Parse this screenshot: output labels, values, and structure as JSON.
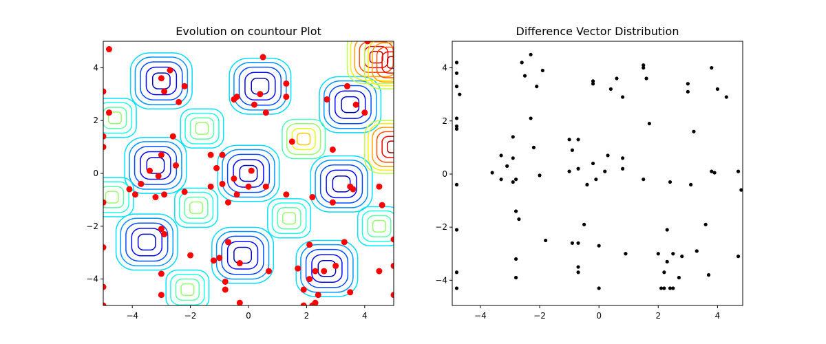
{
  "chart_data": [
    {
      "type": "contour",
      "title": "Evolution on countour Plot",
      "xlabel": "",
      "ylabel": "",
      "xlim": [
        -5,
        5
      ],
      "ylim": [
        -5,
        5
      ],
      "xticks": [
        -4,
        -2,
        0,
        2,
        4
      ],
      "yticks": [
        -4,
        -2,
        0,
        2,
        4
      ],
      "grid": false,
      "colormap": "jet",
      "point_color": "#ff0000",
      "minima": [
        [
          -3.0,
          3.5
        ],
        [
          0.4,
          3.3
        ],
        [
          3.5,
          2.6
        ],
        [
          -3.2,
          0.3
        ],
        [
          0.0,
          0.0
        ],
        [
          3.2,
          -0.4
        ],
        [
          -3.5,
          -2.6
        ],
        [
          -0.2,
          -3.1
        ],
        [
          2.7,
          -3.6
        ]
      ],
      "maxima": [
        [
          -4.6,
          2.1
        ],
        [
          -1.6,
          1.7
        ],
        [
          1.9,
          1.3
        ],
        [
          -1.8,
          -1.3
        ],
        [
          1.4,
          -1.7
        ],
        [
          4.5,
          -2.0
        ],
        [
          -4.7,
          -0.9
        ],
        [
          -2.1,
          -4.4
        ],
        [
          4.4,
          4.4
        ],
        [
          5.0,
          1.0
        ],
        [
          5.0,
          4.2
        ]
      ],
      "points": [
        [
          -4.8,
          4.7
        ],
        [
          -3.0,
          3.6
        ],
        [
          -2.7,
          3.9
        ],
        [
          -2.2,
          3.3
        ],
        [
          -2.9,
          3.1
        ],
        [
          -2.4,
          2.7
        ],
        [
          0.5,
          4.4
        ],
        [
          -0.4,
          2.9
        ],
        [
          -0.5,
          2.8
        ],
        [
          0.4,
          3.0
        ],
        [
          0.2,
          2.6
        ],
        [
          0.6,
          2.3
        ],
        [
          1.3,
          3.4
        ],
        [
          1.3,
          2.9
        ],
        [
          2.7,
          2.8
        ],
        [
          3.4,
          3.3
        ],
        [
          3.7,
          2.6
        ],
        [
          4.0,
          2.3
        ],
        [
          -5.0,
          3.1
        ],
        [
          -4.8,
          2.3
        ],
        [
          -5.0,
          1.4
        ],
        [
          -5.0,
          1.0
        ],
        [
          -2.6,
          1.4
        ],
        [
          1.5,
          1.2
        ],
        [
          -1.3,
          0.7
        ],
        [
          -0.9,
          0.7
        ],
        [
          2.9,
          0.9
        ],
        [
          -3.0,
          0.7
        ],
        [
          -2.5,
          0.3
        ],
        [
          -3.4,
          0.1
        ],
        [
          -3.1,
          -0.1
        ],
        [
          -1.1,
          0.2
        ],
        [
          0.1,
          0.1
        ],
        [
          -0.5,
          -0.2
        ],
        [
          -1.3,
          -0.5
        ],
        [
          -0.9,
          -0.4
        ],
        [
          0.0,
          -0.5
        ],
        [
          0.6,
          -0.5
        ],
        [
          -4.1,
          -0.6
        ],
        [
          -3.9,
          -0.8
        ],
        [
          -3.7,
          -0.4
        ],
        [
          -3.2,
          -0.9
        ],
        [
          -2.9,
          -0.8
        ],
        [
          -2.2,
          -0.7
        ],
        [
          -0.7,
          -1.1
        ],
        [
          -0.4,
          -0.8
        ],
        [
          1.3,
          -0.8
        ],
        [
          2.2,
          -0.9
        ],
        [
          2.9,
          -1.1
        ],
        [
          3.5,
          -0.5
        ],
        [
          3.6,
          -0.6
        ],
        [
          4.5,
          -0.5
        ],
        [
          4.6,
          -1.2
        ],
        [
          -5.0,
          -1.1
        ],
        [
          -3.0,
          -2.1
        ],
        [
          -2.9,
          -2.3
        ],
        [
          -5.0,
          -2.8
        ],
        [
          -2.0,
          -3.1
        ],
        [
          -1.2,
          -3.3
        ],
        [
          -1.0,
          -3.2
        ],
        [
          -0.7,
          -2.6
        ],
        [
          -0.3,
          -3.4
        ],
        [
          2.1,
          -2.7
        ],
        [
          3.3,
          -2.6
        ],
        [
          0.7,
          -3.7
        ],
        [
          1.7,
          -3.6
        ],
        [
          2.3,
          -3.7
        ],
        [
          2.6,
          -3.7
        ],
        [
          3.0,
          -3.5
        ],
        [
          -3.0,
          -3.8
        ],
        [
          -0.8,
          -4.1
        ],
        [
          -0.8,
          -4.4
        ],
        [
          2.1,
          -4.0
        ],
        [
          1.9,
          -4.4
        ],
        [
          3.5,
          -4.5
        ],
        [
          4.5,
          -3.7
        ],
        [
          -5.0,
          -4.3
        ],
        [
          -3.0,
          -4.6
        ],
        [
          -0.3,
          -4.9
        ],
        [
          1.9,
          -5.0
        ],
        [
          2.2,
          -5.0
        ],
        [
          2.4,
          -4.6
        ],
        [
          2.3,
          -4.9
        ],
        [
          5.0,
          -3.5
        ],
        [
          5.0,
          -4.6
        ],
        [
          5.0,
          -2.5
        ],
        [
          -5.0,
          -5.0
        ],
        [
          4.1,
          5.0
        ]
      ]
    },
    {
      "type": "scatter",
      "title": "Difference Vector Distribution",
      "xlabel": "",
      "ylabel": "",
      "xlim": [
        -4.95,
        4.85
      ],
      "ylim": [
        -4.95,
        5.0
      ],
      "xticks": [
        -4,
        -2,
        0,
        2,
        4
      ],
      "yticks": [
        -4,
        -2,
        0,
        2,
        4
      ],
      "grid": false,
      "point_color": "#000000",
      "points": [
        [
          -4.8,
          4.2
        ],
        [
          -4.8,
          3.8
        ],
        [
          -4.8,
          3.3
        ],
        [
          -4.7,
          3.0
        ],
        [
          -4.8,
          2.1
        ],
        [
          -4.8,
          1.8
        ],
        [
          -4.8,
          1.7
        ],
        [
          -4.8,
          -0.4
        ],
        [
          -4.8,
          -2.1
        ],
        [
          -4.8,
          -3.7
        ],
        [
          -4.8,
          -4.3
        ],
        [
          -2.6,
          4.2
        ],
        [
          -2.3,
          4.5
        ],
        [
          -2.5,
          3.7
        ],
        [
          -2.1,
          3.3
        ],
        [
          -1.9,
          3.9
        ],
        [
          -2.3,
          2.1
        ],
        [
          -2.2,
          1.0
        ],
        [
          -2.9,
          1.4
        ],
        [
          -3.3,
          0.7
        ],
        [
          -3.1,
          0.3
        ],
        [
          -2.9,
          0.6
        ],
        [
          -3.6,
          0.05
        ],
        [
          -3.3,
          -0.2
        ],
        [
          -2.8,
          -0.2
        ],
        [
          -2.9,
          -0.3
        ],
        [
          -2.0,
          -0.05
        ],
        [
          -2.8,
          -1.4
        ],
        [
          -2.7,
          -1.7
        ],
        [
          -1.8,
          -2.5
        ],
        [
          -2.8,
          -3.2
        ],
        [
          -2.8,
          -3.9
        ],
        [
          -1.0,
          1.3
        ],
        [
          -0.7,
          1.3
        ],
        [
          -0.9,
          0.9
        ],
        [
          -1.0,
          0.1
        ],
        [
          -0.7,
          0.2
        ],
        [
          -0.4,
          -0.4
        ],
        [
          -0.2,
          0.4
        ],
        [
          -0.1,
          -0.2
        ],
        [
          0.3,
          0.7
        ],
        [
          0.2,
          0.1
        ],
        [
          -0.2,
          3.4
        ],
        [
          -0.2,
          3.5
        ],
        [
          0.4,
          3.2
        ],
        [
          0.6,
          3.6
        ],
        [
          0.8,
          2.9
        ],
        [
          0.8,
          0.6
        ],
        [
          0.8,
          0.2
        ],
        [
          1.5,
          4.1
        ],
        [
          1.5,
          4.0
        ],
        [
          1.6,
          3.6
        ],
        [
          1.7,
          1.9
        ],
        [
          1.5,
          -0.2
        ],
        [
          -0.5,
          -1.9
        ],
        [
          -0.9,
          -2.6
        ],
        [
          -0.7,
          -2.6
        ],
        [
          0.0,
          -2.7
        ],
        [
          -0.7,
          -3.5
        ],
        [
          -0.7,
          -3.7
        ],
        [
          0.0,
          -4.3
        ],
        [
          0.9,
          -3.0
        ],
        [
          2.0,
          -3.0
        ],
        [
          2.2,
          -3.7
        ],
        [
          2.3,
          -3.3
        ],
        [
          2.3,
          -2.1
        ],
        [
          2.5,
          -3.0
        ],
        [
          2.4,
          -0.3
        ],
        [
          2.1,
          -4.3
        ],
        [
          2.2,
          -4.3
        ],
        [
          2.4,
          -4.3
        ],
        [
          2.5,
          -4.3
        ],
        [
          2.7,
          -3.9
        ],
        [
          2.8,
          -3.1
        ],
        [
          3.3,
          -2.9
        ],
        [
          3.6,
          -1.9
        ],
        [
          3.7,
          -3.8
        ],
        [
          4.7,
          -3.1
        ],
        [
          3.0,
          3.4
        ],
        [
          3.0,
          3.1
        ],
        [
          3.2,
          1.6
        ],
        [
          3.1,
          -0.4
        ],
        [
          3.8,
          4.0
        ],
        [
          4.0,
          3.2
        ],
        [
          4.3,
          2.9
        ],
        [
          3.8,
          0.1
        ],
        [
          3.9,
          0.05
        ],
        [
          4.7,
          0.1
        ],
        [
          4.8,
          -0.6
        ]
      ]
    }
  ]
}
